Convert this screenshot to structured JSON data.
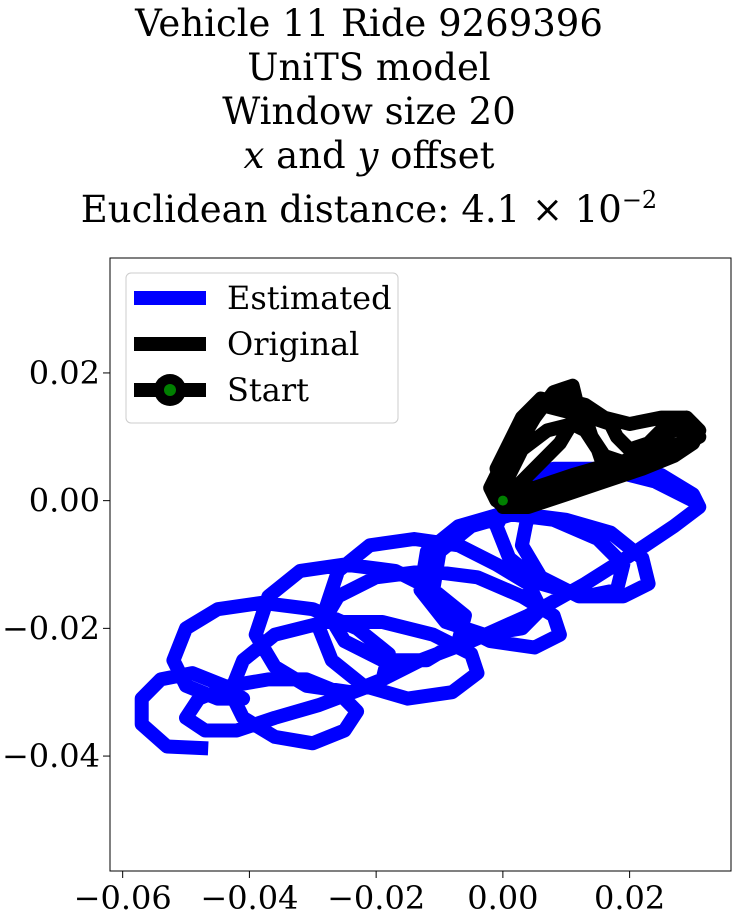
{
  "title": {
    "line1": "Vehicle 11 Ride 9269396",
    "line2": "UniTS model",
    "line3": "Window size 20",
    "line4_x": "x",
    "line4_mid": " and ",
    "line4_y": "y",
    "line4_end": " offset",
    "line5_prefix": "Euclidean distance: 4.1 × 10",
    "line5_exp": "−2"
  },
  "chart_data": {
    "type": "line",
    "xlim": [
      -0.062,
      0.036
    ],
    "ylim": [
      -0.058,
      0.038
    ],
    "xticks": [
      -0.06,
      -0.04,
      -0.02,
      0.0,
      0.02
    ],
    "xtick_labels": [
      "−0.06",
      "−0.04",
      "−0.02",
      "0.00",
      "0.02"
    ],
    "yticks": [
      0.02,
      0.0,
      -0.02,
      -0.04
    ],
    "ytick_labels": [
      "0.02",
      "0.00",
      "−0.02",
      "−0.04"
    ],
    "grid": false,
    "legend_position": "upper-left",
    "series": [
      {
        "name": "Estimated",
        "color": "#0000ff",
        "points": [
          [
            -0.0465,
            -0.0388
          ],
          [
            -0.053,
            -0.0385
          ],
          [
            -0.057,
            -0.035
          ],
          [
            -0.057,
            -0.031
          ],
          [
            -0.054,
            -0.028
          ],
          [
            -0.049,
            -0.027
          ],
          [
            -0.044,
            -0.029
          ],
          [
            -0.041,
            -0.031
          ],
          [
            -0.045,
            -0.031
          ],
          [
            -0.05,
            -0.029
          ],
          [
            -0.052,
            -0.025
          ],
          [
            -0.05,
            -0.02
          ],
          [
            -0.045,
            -0.017
          ],
          [
            -0.038,
            -0.016
          ],
          [
            -0.03,
            -0.017
          ],
          [
            -0.023,
            -0.02
          ],
          [
            -0.018,
            -0.024
          ],
          [
            -0.019,
            -0.028
          ],
          [
            -0.024,
            -0.03
          ],
          [
            -0.031,
            -0.029
          ],
          [
            -0.036,
            -0.026
          ],
          [
            -0.039,
            -0.021
          ],
          [
            -0.037,
            -0.015
          ],
          [
            -0.032,
            -0.011
          ],
          [
            -0.025,
            -0.01
          ],
          [
            -0.017,
            -0.011
          ],
          [
            -0.011,
            -0.014
          ],
          [
            -0.006,
            -0.018
          ],
          [
            -0.007,
            -0.022
          ],
          [
            -0.012,
            -0.025
          ],
          [
            -0.019,
            -0.025
          ],
          [
            -0.025,
            -0.022
          ],
          [
            -0.028,
            -0.017
          ],
          [
            -0.026,
            -0.011
          ],
          [
            -0.021,
            -0.007
          ],
          [
            -0.014,
            -0.006
          ],
          [
            -0.007,
            -0.007
          ],
          [
            -0.001,
            -0.01
          ],
          [
            0.004,
            -0.013
          ],
          [
            0.006,
            -0.017
          ],
          [
            0.003,
            -0.02
          ],
          [
            -0.003,
            -0.021
          ],
          [
            -0.009,
            -0.019
          ],
          [
            -0.013,
            -0.014
          ],
          [
            -0.012,
            -0.008
          ],
          [
            -0.007,
            -0.004
          ],
          [
            0.0,
            -0.002
          ],
          [
            0.008,
            -0.003
          ],
          [
            0.015,
            -0.006
          ],
          [
            0.019,
            -0.01
          ],
          [
            0.018,
            -0.014
          ],
          [
            0.013,
            -0.015
          ],
          [
            0.006,
            -0.013
          ],
          [
            0.001,
            -0.009
          ],
          [
            -0.001,
            -0.004
          ],
          [
            0.002,
            0.002
          ],
          [
            0.008,
            0.005
          ],
          [
            0.016,
            0.005
          ],
          [
            0.024,
            0.003
          ],
          [
            0.03,
            0.0
          ],
          [
            0.031,
            -0.001
          ],
          [
            0.027,
            -0.004
          ],
          [
            0.021,
            -0.008
          ],
          [
            0.013,
            -0.013
          ],
          [
            0.004,
            -0.018
          ],
          [
            -0.005,
            -0.022
          ],
          [
            -0.013,
            -0.025
          ],
          [
            -0.021,
            -0.029
          ],
          [
            -0.029,
            -0.032
          ],
          [
            -0.036,
            -0.034
          ],
          [
            -0.042,
            -0.036
          ],
          [
            -0.047,
            -0.036
          ],
          [
            -0.05,
            -0.034
          ],
          [
            -0.048,
            -0.031
          ],
          [
            -0.043,
            -0.029
          ],
          [
            -0.037,
            -0.028
          ],
          [
            -0.031,
            -0.028
          ],
          [
            -0.026,
            -0.03
          ],
          [
            -0.023,
            -0.033
          ],
          [
            -0.025,
            -0.036
          ],
          [
            -0.03,
            -0.038
          ],
          [
            -0.036,
            -0.037
          ],
          [
            -0.041,
            -0.034
          ],
          [
            -0.043,
            -0.03
          ],
          [
            -0.041,
            -0.025
          ],
          [
            -0.036,
            -0.021
          ],
          [
            -0.028,
            -0.019
          ],
          [
            -0.019,
            -0.019
          ],
          [
            -0.011,
            -0.021
          ],
          [
            -0.005,
            -0.024
          ],
          [
            -0.004,
            -0.027
          ],
          [
            -0.008,
            -0.03
          ],
          [
            -0.015,
            -0.031
          ],
          [
            -0.022,
            -0.029
          ],
          [
            -0.027,
            -0.025
          ],
          [
            -0.029,
            -0.02
          ],
          [
            -0.026,
            -0.015
          ],
          [
            -0.02,
            -0.012
          ],
          [
            -0.012,
            -0.011
          ],
          [
            -0.004,
            -0.012
          ],
          [
            0.003,
            -0.015
          ],
          [
            0.008,
            -0.018
          ],
          [
            0.009,
            -0.021
          ],
          [
            0.005,
            -0.023
          ],
          [
            -0.002,
            -0.022
          ],
          [
            -0.008,
            -0.019
          ],
          [
            -0.011,
            -0.014
          ],
          [
            -0.01,
            -0.008
          ],
          [
            -0.005,
            -0.004
          ],
          [
            0.002,
            -0.002
          ],
          [
            0.01,
            -0.003
          ],
          [
            0.017,
            -0.005
          ],
          [
            0.022,
            -0.009
          ],
          [
            0.023,
            -0.013
          ],
          [
            0.019,
            -0.015
          ],
          [
            0.012,
            -0.015
          ],
          [
            0.006,
            -0.012
          ],
          [
            0.003,
            -0.007
          ],
          [
            0.004,
            -0.002
          ],
          [
            0.009,
            0.003
          ],
          [
            0.017,
            0.005
          ],
          [
            0.025,
            0.004
          ],
          [
            0.03,
            0.001
          ],
          [
            0.031,
            -0.001
          ]
        ]
      },
      {
        "name": "Original",
        "color": "#000000",
        "points": [
          [
            0.0,
            0.0
          ],
          [
            0.004,
            0.004
          ],
          [
            0.009,
            0.009
          ],
          [
            0.012,
            0.014
          ],
          [
            0.011,
            0.018
          ],
          [
            0.008,
            0.017
          ],
          [
            0.005,
            0.013
          ],
          [
            0.002,
            0.008
          ],
          [
            0.0,
            0.003
          ],
          [
            0.0,
            -0.001
          ],
          [
            0.004,
            -0.001
          ],
          [
            0.01,
            0.001
          ],
          [
            0.016,
            0.003
          ],
          [
            0.022,
            0.005
          ],
          [
            0.027,
            0.007
          ],
          [
            0.03,
            0.009
          ],
          [
            0.031,
            0.011
          ],
          [
            0.029,
            0.013
          ],
          [
            0.025,
            0.013
          ],
          [
            0.02,
            0.012
          ],
          [
            0.016,
            0.013
          ],
          [
            0.013,
            0.015
          ],
          [
            0.009,
            0.016
          ],
          [
            0.005,
            0.014
          ],
          [
            0.002,
            0.01
          ],
          [
            0.0,
            0.006
          ],
          [
            -0.002,
            0.002
          ],
          [
            -0.001,
            0.0
          ],
          [
            0.003,
            0.001
          ],
          [
            0.008,
            0.003
          ],
          [
            0.013,
            0.004
          ],
          [
            0.016,
            0.005
          ],
          [
            0.015,
            0.008
          ],
          [
            0.013,
            0.011
          ],
          [
            0.011,
            0.012
          ],
          [
            0.007,
            0.011
          ],
          [
            0.003,
            0.008
          ],
          [
            0.001,
            0.004
          ],
          [
            0.0,
            0.001
          ],
          [
            0.004,
            0.001
          ],
          [
            0.01,
            0.003
          ],
          [
            0.017,
            0.005
          ],
          [
            0.023,
            0.007
          ],
          [
            0.028,
            0.009
          ],
          [
            0.03,
            0.011
          ],
          [
            0.029,
            0.013
          ],
          [
            0.026,
            0.012
          ],
          [
            0.022,
            0.008
          ],
          [
            0.019,
            0.006
          ],
          [
            0.016,
            0.007
          ],
          [
            0.014,
            0.01
          ],
          [
            0.013,
            0.013
          ],
          [
            0.01,
            0.015
          ],
          [
            0.006,
            0.016
          ],
          [
            0.003,
            0.013
          ],
          [
            0.001,
            0.009
          ],
          [
            -0.001,
            0.005
          ],
          [
            0.0,
            0.002
          ],
          [
            0.005,
            0.002
          ],
          [
            0.011,
            0.004
          ],
          [
            0.018,
            0.006
          ],
          [
            0.024,
            0.007
          ],
          [
            0.029,
            0.009
          ],
          [
            0.031,
            0.01
          ],
          [
            0.03,
            0.012
          ],
          [
            0.027,
            0.011
          ],
          [
            0.023,
            0.009
          ],
          [
            0.02,
            0.008
          ],
          [
            0.018,
            0.01
          ],
          [
            0.017,
            0.012
          ],
          [
            0.014,
            0.013
          ],
          [
            0.01,
            0.014
          ],
          [
            0.006,
            0.015
          ],
          [
            0.003,
            0.012
          ],
          [
            0.002,
            0.008
          ],
          [
            0.001,
            0.004
          ],
          [
            0.0,
            0.0
          ]
        ]
      }
    ],
    "start_point": {
      "name": "Start",
      "x": 0.0,
      "y": 0.0,
      "face_color": "#008000",
      "edge_color": "#000000"
    }
  }
}
